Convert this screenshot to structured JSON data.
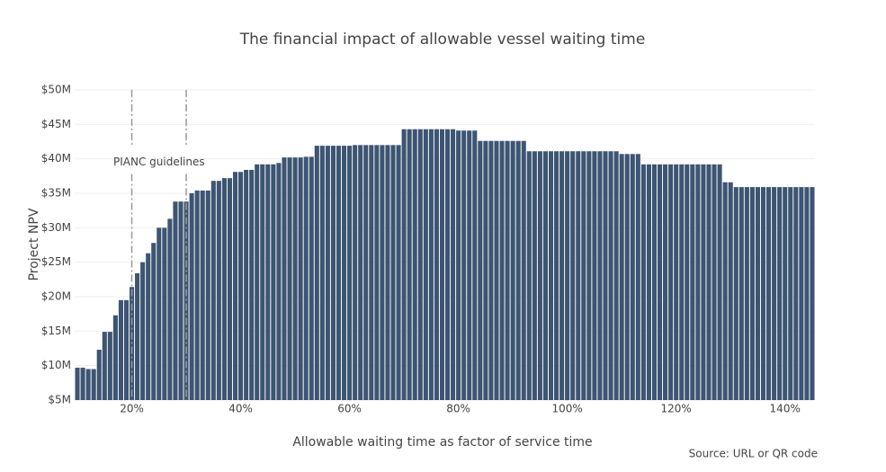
{
  "chart_data": {
    "type": "bar",
    "title": "The financial impact of allowable vessel waiting time",
    "x_label": "Allowable waiting time as factor of service time",
    "y_label": "Project NPV",
    "source": "Source: URL or QR code",
    "color": "#3d5573",
    "x": [
      10,
      11,
      12,
      13,
      14,
      15,
      16,
      17,
      18,
      19,
      20,
      21,
      22,
      23,
      24,
      25,
      26,
      27,
      28,
      29,
      30,
      31,
      32,
      33,
      34,
      35,
      36,
      37,
      38,
      39,
      40,
      41,
      42,
      43,
      44,
      45,
      46,
      47,
      48,
      49,
      50,
      51,
      52,
      53,
      54,
      55,
      56,
      57,
      58,
      59,
      60,
      61,
      62,
      63,
      64,
      65,
      66,
      67,
      68,
      69,
      70,
      71,
      72,
      73,
      74,
      75,
      76,
      77,
      78,
      79,
      80,
      81,
      82,
      83,
      84,
      85,
      86,
      87,
      88,
      89,
      90,
      91,
      92,
      93,
      94,
      95,
      96,
      97,
      98,
      99,
      100,
      101,
      102,
      103,
      104,
      105,
      106,
      107,
      108,
      109,
      110,
      111,
      112,
      113,
      114,
      115,
      116,
      117,
      118,
      119,
      120,
      121,
      122,
      123,
      124,
      125,
      126,
      127,
      128,
      129,
      130,
      131,
      132,
      133,
      134,
      135,
      136,
      137,
      138,
      139,
      140,
      141,
      142,
      143,
      144,
      145
    ],
    "values": [
      9.7,
      9.7,
      9.5,
      9.5,
      12.3,
      14.9,
      14.9,
      17.3,
      19.5,
      19.5,
      21.4,
      23.4,
      25,
      26.3,
      27.8,
      30,
      30,
      31.3,
      33.8,
      33.8,
      33.8,
      35,
      35.4,
      35.4,
      35.4,
      36.8,
      36.8,
      37.2,
      37.2,
      38.1,
      38.1,
      38.4,
      38.4,
      39.2,
      39.2,
      39.2,
      39.2,
      39.4,
      40.2,
      40.2,
      40.2,
      40.2,
      40.3,
      40.3,
      41.9,
      41.9,
      41.9,
      41.9,
      41.9,
      41.9,
      41.9,
      42,
      42,
      42,
      42,
      42,
      42,
      42,
      42,
      42,
      44.3,
      44.3,
      44.3,
      44.3,
      44.3,
      44.3,
      44.3,
      44.3,
      44.3,
      44.3,
      44.1,
      44.1,
      44.1,
      44.1,
      42.6,
      42.6,
      42.6,
      42.6,
      42.6,
      42.6,
      42.6,
      42.6,
      42.6,
      41.1,
      41.1,
      41.1,
      41.1,
      41.1,
      41.1,
      41.1,
      41.1,
      41.1,
      41.1,
      41.1,
      41.1,
      41.1,
      41.1,
      41.1,
      41.1,
      41.1,
      40.7,
      40.7,
      40.7,
      40.7,
      39.2,
      39.2,
      39.2,
      39.2,
      39.2,
      39.2,
      39.2,
      39.2,
      39.2,
      39.2,
      39.2,
      39.2,
      39.2,
      39.2,
      39.2,
      36.6,
      36.6,
      35.9,
      35.9,
      35.9,
      35.9,
      35.9,
      35.9,
      35.9,
      35.9,
      35.9,
      35.9,
      35.9,
      35.9,
      35.9,
      35.9,
      35.9
    ],
    "xlim": [
      9.5,
      145.5
    ],
    "xticks": [
      {
        "value": 20,
        "label": "20%"
      },
      {
        "value": 40,
        "label": "40%"
      },
      {
        "value": 60,
        "label": "60%"
      },
      {
        "value": 80,
        "label": "80%"
      },
      {
        "value": 100,
        "label": "100%"
      },
      {
        "value": 120,
        "label": "120%"
      },
      {
        "value": 140,
        "label": "140%"
      }
    ],
    "ylim": [
      5,
      50
    ],
    "yticks": [
      {
        "value": 5,
        "label": "$5M"
      },
      {
        "value": 10,
        "label": "$10M"
      },
      {
        "value": 15,
        "label": "$15M"
      },
      {
        "value": 20,
        "label": "$20M"
      },
      {
        "value": 25,
        "label": "$25M"
      },
      {
        "value": 30,
        "label": "$30M"
      },
      {
        "value": 35,
        "label": "$35M"
      },
      {
        "value": 40,
        "label": "$40M"
      },
      {
        "value": 45,
        "label": "$45M"
      },
      {
        "value": 50,
        "label": "$50M"
      }
    ],
    "grid": true,
    "vlines": [
      20,
      30
    ],
    "annotation": {
      "text": "PIANC guidelines",
      "x": 25,
      "y": 39.5
    }
  }
}
